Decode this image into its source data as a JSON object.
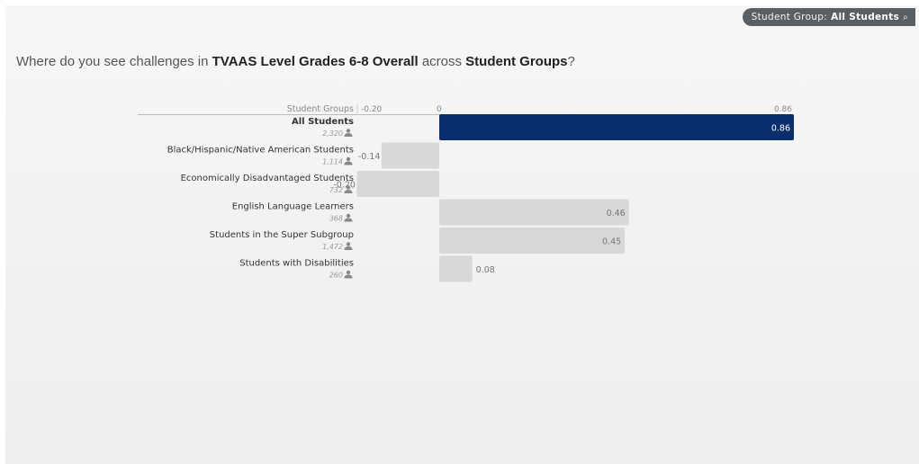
{
  "filter": {
    "label": "Student Group:",
    "value": "All Students",
    "icon": "magnifier-icon"
  },
  "headline": {
    "prefix": "Where do you see challenges in",
    "metric": "TVAAS Level Grades 6-8 Overall",
    "middle": "across",
    "dimension": "Student Groups",
    "suffix": "?"
  },
  "colors": {
    "highlight": "#0a2d6e",
    "bar": "#d8d8d8"
  },
  "chart_data": {
    "type": "bar",
    "orientation": "horizontal",
    "category_header": "Student Groups",
    "axis_ticks": [
      "-0.20",
      "0",
      "0.86"
    ],
    "xlim": [
      -0.2,
      0.86
    ],
    "categories": [
      "All Students",
      "Black/Hispanic/Native American Students",
      "Economically Disadvantaged Students",
      "English Language Learners",
      "Students in the Super Subgroup",
      "Students with Disabilities"
    ],
    "counts": [
      "2,320",
      "1,114",
      "732",
      "368",
      "1,472",
      "260"
    ],
    "values": [
      0.86,
      -0.14,
      -0.2,
      0.46,
      0.45,
      0.08
    ],
    "value_labels": [
      "0.86",
      "-0.14",
      "-0.20",
      "0.46",
      "0.45",
      "0.08"
    ],
    "highlight_index": 0,
    "count_icon": "person-icon"
  }
}
